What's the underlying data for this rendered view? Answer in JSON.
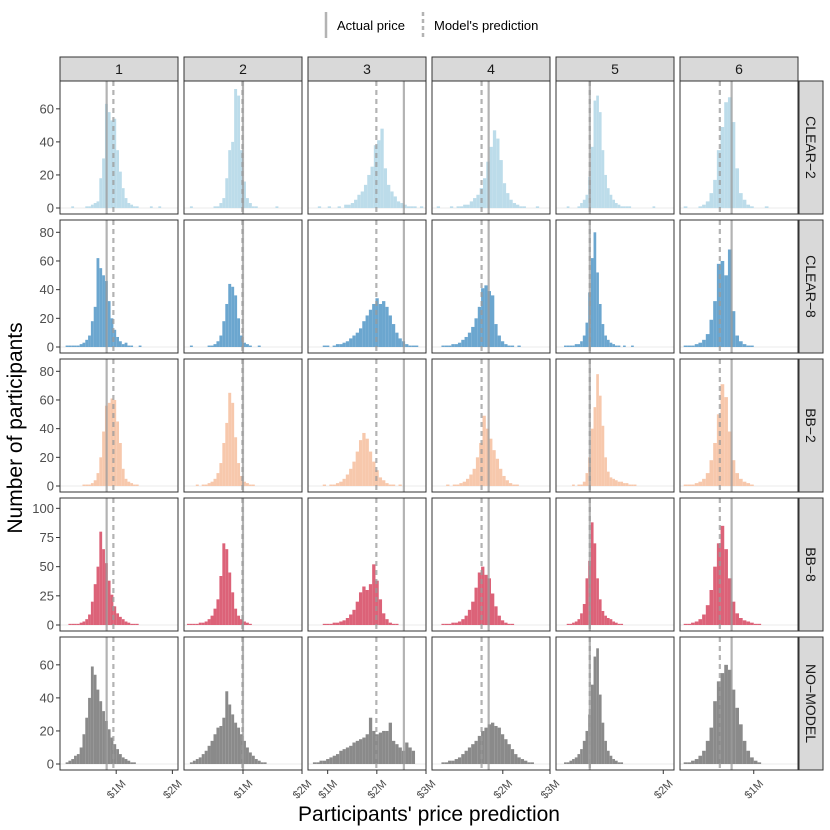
{
  "chart_data": {
    "type": "histogram-facet-grid",
    "xlabel": "Participants' price prediction",
    "ylabel": "Number of participants",
    "legend": {
      "position": "top",
      "items": [
        {
          "label": "Actual price",
          "linetype": "solid"
        },
        {
          "label": "Model's prediction",
          "linetype": "dashed"
        }
      ]
    },
    "columns": [
      {
        "label": "1",
        "xlim": [
          0,
          2.1
        ],
        "xticks": [
          1,
          2
        ],
        "xtick_labels": [
          "$1M",
          "$2M"
        ],
        "actual": 0.83,
        "predicted": 0.95
      },
      {
        "label": "2",
        "xlim": [
          0,
          2.0
        ],
        "xticks": [
          1,
          2
        ],
        "xtick_labels": [
          "$1M",
          "$2M"
        ],
        "actual": 1.0,
        "predicted": 0.99
      },
      {
        "label": "3",
        "xlim": [
          0.6,
          3.0
        ],
        "xticks": [
          1,
          2,
          3
        ],
        "xtick_labels": [
          "$1M",
          "$2M",
          "$3M"
        ],
        "actual": 2.55,
        "predicted": 1.99
      },
      {
        "label": "4",
        "xlim": [
          0.5,
          3.0
        ],
        "xticks": [
          2,
          3
        ],
        "xtick_labels": [
          "$2M",
          "$3M"
        ],
        "actual": 1.7,
        "predicted": 1.55
      },
      {
        "label": "5",
        "xlim": [
          0,
          2.2
        ],
        "xticks": [
          2
        ],
        "xtick_labels": [
          "$2M"
        ],
        "actual": 0.63,
        "predicted": 0.63
      },
      {
        "label": "6",
        "xlim": [
          0,
          1.6
        ],
        "xticks": [
          1
        ],
        "xtick_labels": [
          "$1M"
        ],
        "actual": 0.7,
        "predicted": 0.54
      }
    ],
    "rows": [
      {
        "label": "CLEAR−2",
        "color": "#bcdcea",
        "ylim": [
          0,
          72
        ],
        "yticks": [
          0,
          20,
          40,
          60
        ]
      },
      {
        "label": "CLEAR−8",
        "color": "#6ba6cf",
        "ylim": [
          0,
          83
        ],
        "yticks": [
          0,
          20,
          40,
          60,
          80
        ]
      },
      {
        "label": "BB−2",
        "color": "#f7c8ac",
        "ylim": [
          0,
          83
        ],
        "yticks": [
          0,
          20,
          40,
          60,
          80
        ]
      },
      {
        "label": "BB−8",
        "color": "#dc6278",
        "ylim": [
          0,
          102
        ],
        "yticks": [
          0,
          25,
          50,
          75,
          100
        ]
      },
      {
        "label": "NO−MODEL",
        "color": "#8a8a8a",
        "ylim": [
          0,
          72
        ],
        "yticks": [
          0,
          20,
          40,
          60
        ]
      }
    ],
    "histograms": [
      [
        {
          "start": 0.2,
          "width": 0.05,
          "counts": [
            1,
            0,
            0,
            0,
            0,
            1,
            1,
            2,
            3,
            4,
            18,
            30,
            63,
            58,
            53,
            54,
            35,
            22,
            12,
            6,
            3,
            2,
            1,
            1,
            0,
            0,
            0,
            0,
            1,
            0,
            0,
            1
          ]
        },
        {
          "start": 0.1,
          "width": 0.05,
          "counts": [
            1,
            0,
            0,
            0,
            0,
            0,
            0,
            0,
            1,
            1,
            3,
            6,
            18,
            35,
            40,
            72,
            68,
            35,
            16,
            6,
            3,
            1,
            1,
            0,
            0,
            0,
            0,
            0,
            0,
            1
          ]
        },
        {
          "start": 0.8,
          "width": 0.067,
          "counts": [
            1,
            0,
            0,
            1,
            0,
            0,
            1,
            0,
            2,
            2,
            3,
            5,
            8,
            10,
            14,
            20,
            25,
            38,
            41,
            48,
            24,
            14,
            10,
            7,
            4,
            3,
            2,
            1,
            1,
            1,
            0,
            1
          ]
        },
        {
          "start": 0.6,
          "width": 0.07,
          "counts": [
            1,
            0,
            0,
            0,
            1,
            0,
            1,
            1,
            2,
            2,
            4,
            6,
            8,
            12,
            18,
            28,
            37,
            47,
            42,
            29,
            15,
            9,
            5,
            3,
            2,
            1,
            1,
            0,
            0,
            0,
            1
          ]
        },
        {
          "start": 0.2,
          "width": 0.05,
          "counts": [
            1,
            0,
            0,
            0,
            1,
            3,
            5,
            8,
            19,
            37,
            65,
            68,
            58,
            35,
            20,
            12,
            8,
            5,
            3,
            2,
            1,
            1,
            1,
            1,
            0,
            0,
            0,
            0,
            0,
            0,
            0,
            0,
            1
          ]
        },
        {
          "start": 0.05,
          "width": 0.05,
          "counts": [
            1,
            0,
            0,
            0,
            1,
            2,
            4,
            9,
            17,
            35,
            49,
            64,
            67,
            52,
            24,
            9,
            5,
            2,
            1,
            0,
            0,
            0,
            1
          ]
        }
      ],
      [
        {
          "start": 0.1,
          "width": 0.05,
          "counts": [
            1,
            1,
            1,
            1,
            1,
            2,
            3,
            5,
            8,
            18,
            28,
            62,
            55,
            50,
            46,
            32,
            20,
            12,
            7,
            4,
            2,
            3,
            1,
            1,
            0,
            0,
            1
          ]
        },
        {
          "start": 0.1,
          "width": 0.05,
          "counts": [
            1,
            0,
            0,
            0,
            0,
            0,
            1,
            1,
            2,
            4,
            8,
            18,
            30,
            44,
            42,
            36,
            20,
            8,
            3,
            2,
            1,
            0,
            0,
            1
          ]
        },
        {
          "start": 0.9,
          "width": 0.067,
          "counts": [
            1,
            1,
            0,
            1,
            2,
            2,
            3,
            4,
            6,
            8,
            10,
            13,
            18,
            22,
            26,
            30,
            34,
            30,
            32,
            28,
            22,
            16,
            10,
            6,
            4,
            2,
            1,
            1,
            1
          ]
        },
        {
          "start": 0.7,
          "width": 0.07,
          "counts": [
            1,
            1,
            1,
            2,
            2,
            3,
            5,
            7,
            10,
            14,
            20,
            28,
            41,
            43,
            39,
            36,
            16,
            8,
            4,
            2,
            1,
            1,
            0,
            1
          ]
        },
        {
          "start": 0.15,
          "width": 0.05,
          "counts": [
            1,
            1,
            1,
            1,
            2,
            2,
            4,
            8,
            17,
            38,
            62,
            80,
            52,
            30,
            16,
            8,
            5,
            3,
            2,
            1,
            1,
            0,
            1,
            0,
            0,
            1
          ]
        },
        {
          "start": 0.05,
          "width": 0.05,
          "counts": [
            1,
            1,
            1,
            2,
            3,
            5,
            9,
            19,
            32,
            58,
            60,
            50,
            68,
            25,
            8,
            4,
            2,
            1,
            1
          ]
        }
      ],
      [
        {
          "start": 0.4,
          "width": 0.05,
          "counts": [
            1,
            1,
            1,
            2,
            4,
            9,
            20,
            38,
            56,
            58,
            61,
            60,
            45,
            30,
            12,
            5,
            3,
            2,
            1,
            1
          ]
        },
        {
          "start": 0.2,
          "width": 0.05,
          "counts": [
            1,
            0,
            1,
            1,
            2,
            3,
            5,
            9,
            16,
            30,
            44,
            65,
            58,
            34,
            16,
            7,
            3,
            2,
            1,
            1
          ]
        },
        {
          "start": 0.9,
          "width": 0.067,
          "counts": [
            1,
            0,
            1,
            1,
            2,
            3,
            5,
            8,
            12,
            17,
            24,
            32,
            37,
            33,
            24,
            17,
            11,
            6,
            4,
            2,
            1,
            1,
            0,
            1
          ]
        },
        {
          "start": 0.8,
          "width": 0.07,
          "counts": [
            1,
            0,
            1,
            1,
            2,
            3,
            5,
            8,
            12,
            20,
            30,
            49,
            40,
            33,
            25,
            19,
            12,
            7,
            4,
            2,
            1,
            1
          ]
        },
        {
          "start": 0.3,
          "width": 0.05,
          "counts": [
            1,
            0,
            1,
            1,
            3,
            9,
            20,
            40,
            55,
            78,
            63,
            42,
            20,
            10,
            6,
            5,
            4,
            3,
            3,
            2,
            2,
            1,
            1,
            1
          ]
        },
        {
          "start": 0.05,
          "width": 0.05,
          "counts": [
            1,
            1,
            1,
            2,
            3,
            5,
            9,
            18,
            30,
            50,
            71,
            62,
            38,
            18,
            9,
            5,
            3,
            2,
            1
          ]
        }
      ],
      [
        {
          "start": 0.15,
          "width": 0.05,
          "counts": [
            1,
            1,
            1,
            1,
            2,
            3,
            5,
            9,
            20,
            35,
            50,
            80,
            65,
            53,
            38,
            26,
            16,
            10,
            7,
            5,
            3,
            2,
            1,
            1,
            1
          ]
        },
        {
          "start": 0.05,
          "width": 0.05,
          "counts": [
            1,
            1,
            1,
            1,
            2,
            2,
            3,
            5,
            8,
            14,
            22,
            42,
            70,
            65,
            45,
            28,
            14,
            8,
            5,
            3,
            2,
            1
          ]
        },
        {
          "start": 0.9,
          "width": 0.067,
          "counts": [
            1,
            1,
            1,
            2,
            2,
            3,
            4,
            6,
            9,
            13,
            20,
            28,
            33,
            30,
            35,
            52,
            38,
            22,
            10,
            5,
            2,
            1,
            1
          ]
        },
        {
          "start": 0.7,
          "width": 0.07,
          "counts": [
            1,
            1,
            1,
            2,
            2,
            3,
            5,
            8,
            13,
            20,
            32,
            45,
            50,
            43,
            40,
            27,
            16,
            8,
            4,
            2,
            1,
            1
          ]
        },
        {
          "start": 0.2,
          "width": 0.05,
          "counts": [
            1,
            1,
            2,
            3,
            5,
            10,
            18,
            40,
            55,
            88,
            70,
            40,
            22,
            12,
            8,
            6,
            5,
            3,
            2,
            1,
            1
          ]
        },
        {
          "start": 0.05,
          "width": 0.05,
          "counts": [
            1,
            1,
            2,
            3,
            5,
            9,
            17,
            30,
            50,
            70,
            85,
            65,
            40,
            20,
            10,
            6,
            4,
            3,
            2,
            1,
            1
          ]
        }
      ],
      [
        {
          "start": 0.1,
          "width": 0.05,
          "counts": [
            1,
            2,
            3,
            5,
            6,
            10,
            18,
            28,
            40,
            59,
            54,
            45,
            38,
            32,
            26,
            21,
            16,
            12,
            9,
            6,
            4,
            3,
            2,
            1,
            1
          ]
        },
        {
          "start": 0.1,
          "width": 0.05,
          "counts": [
            1,
            2,
            3,
            4,
            6,
            8,
            11,
            14,
            18,
            22,
            23,
            28,
            44,
            36,
            30,
            25,
            22,
            18,
            14,
            10,
            7,
            5,
            3,
            2,
            1,
            1
          ]
        },
        {
          "start": 0.7,
          "width": 0.067,
          "counts": [
            1,
            1,
            2,
            2,
            3,
            4,
            5,
            6,
            8,
            9,
            10,
            11,
            13,
            14,
            15,
            16,
            18,
            28,
            20,
            18,
            19,
            20,
            20,
            25,
            14,
            12,
            10,
            8,
            13,
            10,
            8
          ]
        },
        {
          "start": 0.7,
          "width": 0.07,
          "counts": [
            1,
            1,
            2,
            2,
            3,
            4,
            6,
            8,
            10,
            12,
            14,
            17,
            20,
            22,
            24,
            25,
            23,
            22,
            18,
            15,
            12,
            9,
            6,
            4,
            3,
            2,
            1,
            1
          ]
        },
        {
          "start": 0.15,
          "width": 0.05,
          "counts": [
            1,
            1,
            2,
            3,
            4,
            6,
            9,
            14,
            20,
            30,
            48,
            65,
            70,
            42,
            25,
            14,
            8,
            5,
            3,
            2,
            1,
            1
          ]
        },
        {
          "start": 0.05,
          "width": 0.05,
          "counts": [
            1,
            1,
            2,
            3,
            5,
            8,
            14,
            22,
            38,
            50,
            55,
            60,
            57,
            45,
            34,
            24,
            14,
            8,
            4,
            2,
            1
          ]
        }
      ]
    ]
  }
}
